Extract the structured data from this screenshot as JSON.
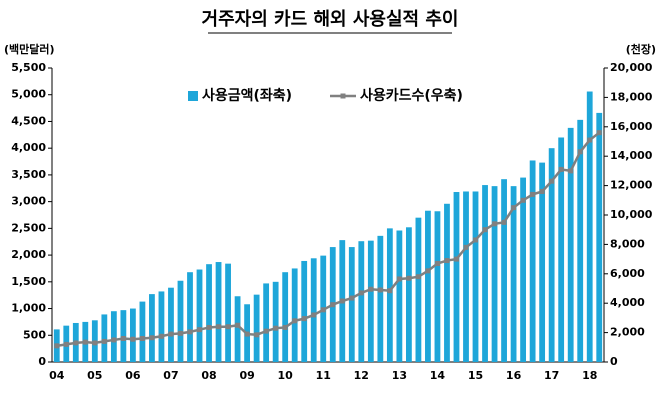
{
  "chart_data": {
    "type": "bar_line",
    "title": "거주자의 카드 해외 사용실적 추이",
    "y_label": "(백만달러)",
    "y2_label": "(천장)",
    "categories": [
      "04",
      null,
      null,
      null,
      "05",
      null,
      null,
      null,
      "06",
      null,
      null,
      null,
      "07",
      null,
      null,
      null,
      "08",
      null,
      null,
      null,
      "09",
      null,
      null,
      null,
      "10",
      null,
      null,
      null,
      "11",
      null,
      null,
      null,
      "12",
      null,
      null,
      null,
      "13",
      null,
      null,
      null,
      "14",
      null,
      null,
      null,
      "15",
      null,
      null,
      null,
      "16",
      null,
      null,
      null,
      "17",
      null,
      null,
      null,
      "18",
      null
    ],
    "series": [
      {
        "name": "사용금액(좌축)",
        "color": "#1ea6d9",
        "values": [
          610,
          680,
          730,
          750,
          780,
          890,
          950,
          970,
          1000,
          1130,
          1270,
          1320,
          1390,
          1520,
          1680,
          1730,
          1830,
          1870,
          1840,
          1230,
          1080,
          1260,
          1470,
          1500,
          1680,
          1750,
          1890,
          1940,
          1990,
          2150,
          2280,
          2150,
          2260,
          2270,
          2360,
          2500,
          2460,
          2520,
          2700,
          2830,
          2820,
          2960,
          3180,
          3190,
          3190,
          3310,
          3290,
          3420,
          3290,
          3450,
          3770,
          3730,
          4000,
          4200,
          4380,
          4530,
          5060,
          4660
        ]
      },
      {
        "name": "사용카드수(우축)",
        "color": "#808080",
        "axis": "y2",
        "values": [
          1100,
          1200,
          1300,
          1350,
          1300,
          1400,
          1500,
          1600,
          1550,
          1600,
          1650,
          1750,
          1900,
          1950,
          2050,
          2200,
          2350,
          2400,
          2400,
          2500,
          1900,
          1850,
          2100,
          2300,
          2350,
          2800,
          2950,
          3200,
          3550,
          3900,
          4150,
          4350,
          4700,
          4950,
          4900,
          4850,
          5650,
          5700,
          5800,
          6200,
          6700,
          6900,
          7000,
          7800,
          8300,
          9000,
          9400,
          9500,
          10500,
          11000,
          11400,
          11600,
          12300,
          13100,
          13000,
          14300,
          15100,
          15600
        ]
      }
    ],
    "ylim": [
      0,
      5500
    ],
    "yticks": [
      0,
      500,
      {
        "value": 1000,
        "label": "1,000"
      },
      {
        "value": 1500,
        "label": "1,500"
      },
      {
        "value": 2000,
        "label": "2,000"
      },
      {
        "value": 2500,
        "label": "2,500"
      },
      {
        "value": 3000,
        "label": "3,000"
      },
      {
        "value": 3500,
        "label": "3,500"
      },
      {
        "value": 4000,
        "label": "4,000"
      },
      {
        "value": 4500,
        "label": "4,500"
      },
      {
        "value": 5000,
        "label": "5,000"
      },
      {
        "value": 5500,
        "label": "5,500"
      }
    ],
    "y2lim": [
      0,
      20000
    ],
    "y2ticks": [
      0,
      {
        "value": 2000,
        "label": "2,000"
      },
      {
        "value": 4000,
        "label": "4,000"
      },
      {
        "value": 6000,
        "label": "6,000"
      },
      {
        "value": 8000,
        "label": "8,000"
      },
      {
        "value": 10000,
        "label": "10,000"
      },
      {
        "value": 12000,
        "label": "12,000"
      },
      {
        "value": 14000,
        "label": "14,000"
      },
      {
        "value": 16000,
        "label": "16,000"
      },
      {
        "value": 18000,
        "label": "18,000"
      },
      {
        "value": 20000,
        "label": "20,000"
      }
    ]
  }
}
